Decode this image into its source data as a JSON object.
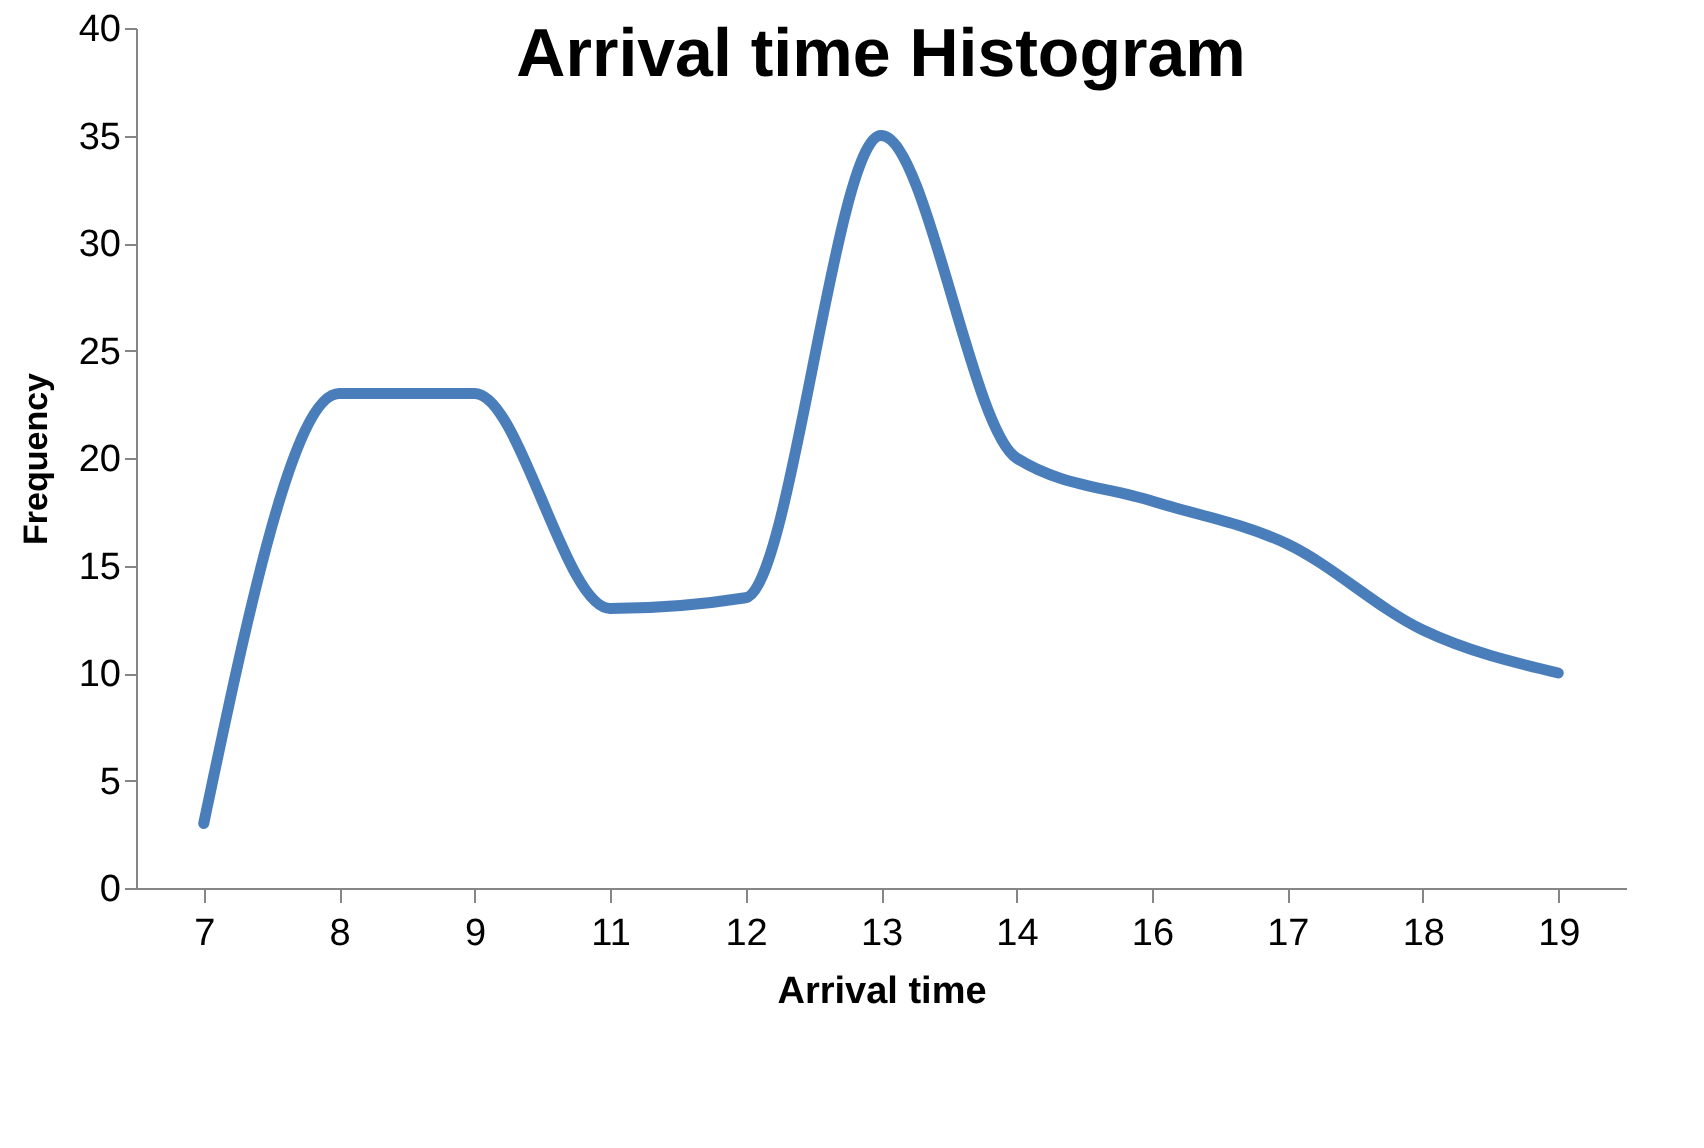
{
  "chart_data": {
    "type": "line",
    "title": "Arrival time Histogram",
    "xlabel": "Arrival time",
    "ylabel": "Frequency",
    "categories": [
      "7",
      "8",
      "9",
      "11",
      "12",
      "13",
      "14",
      "16",
      "17",
      "18",
      "19"
    ],
    "series": [
      {
        "color": "#4a7ebb",
        "values": [
          3,
          23,
          23,
          13,
          13.5,
          35,
          20,
          18,
          16,
          12,
          10
        ]
      }
    ],
    "ylim": [
      0,
      40
    ],
    "yticks": [
      0,
      5,
      10,
      15,
      20,
      25,
      30,
      35,
      40
    ],
    "grid": false,
    "legend": false,
    "marker": "none",
    "line_style": "solid"
  }
}
